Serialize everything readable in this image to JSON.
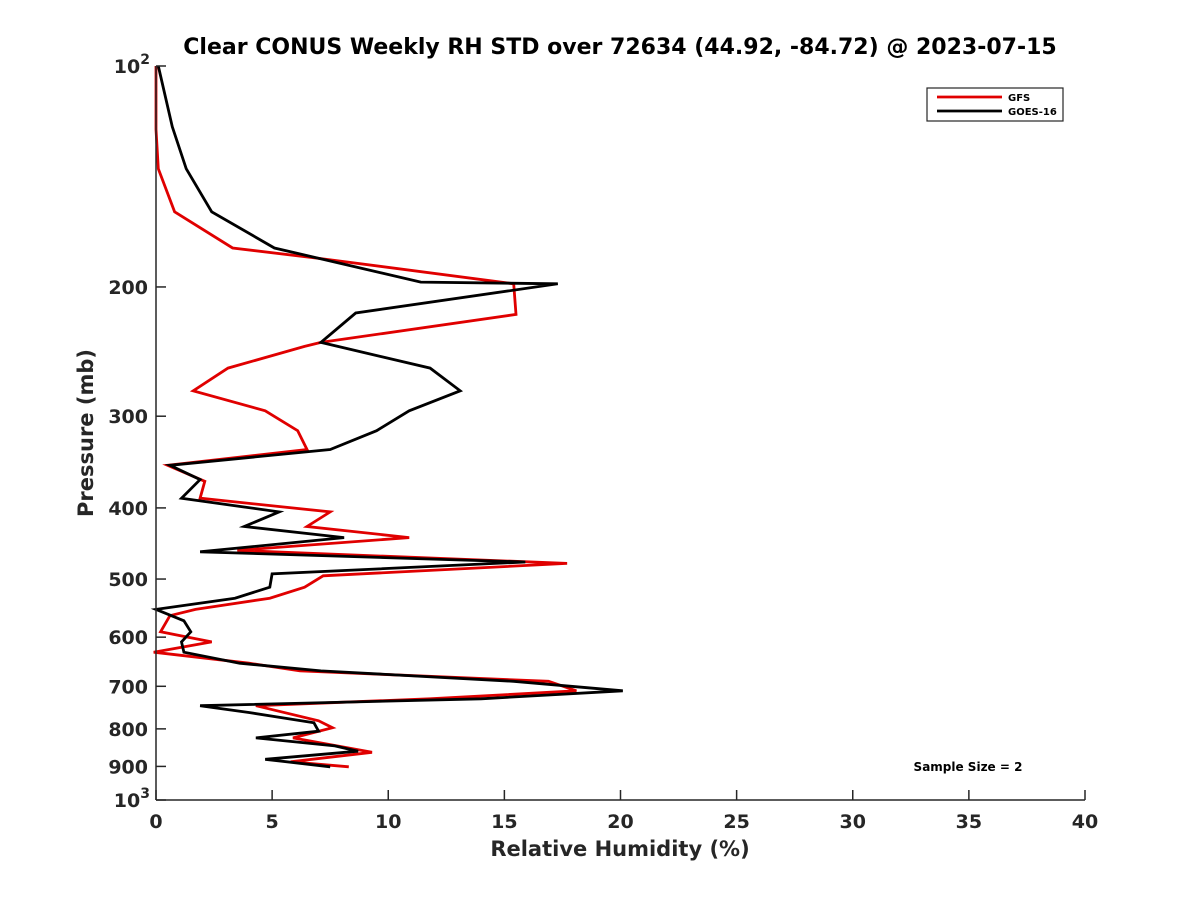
{
  "chart_data": {
    "type": "line",
    "title": "Clear CONUS Weekly RH STD over 72634 (44.92, -84.72) @ 2023-07-15",
    "xlabel": "Relative Humidity (%)",
    "ylabel": "Pressure (mb)",
    "xlim": [
      0,
      40
    ],
    "ylim": [
      100,
      1000
    ],
    "yscale": "log",
    "y_reversed": true,
    "grid": false,
    "x_ticks": [
      0,
      5,
      10,
      15,
      20,
      25,
      30,
      35,
      40
    ],
    "x_tick_labels": [
      "0",
      "5",
      "10",
      "15",
      "20",
      "25",
      "30",
      "35",
      "40"
    ],
    "y_ticks": [
      100,
      200,
      300,
      400,
      500,
      600,
      700,
      800,
      900,
      1000
    ],
    "y_tick_labels": [
      {
        "base": "10",
        "exp": "2"
      },
      {
        "text": "200"
      },
      {
        "text": "300"
      },
      {
        "text": "400"
      },
      {
        "text": "500"
      },
      {
        "text": "600"
      },
      {
        "text": "700"
      },
      {
        "text": "800"
      },
      {
        "text": "900"
      },
      {
        "base": "10",
        "exp": "3"
      }
    ],
    "legend": {
      "position": "top-right",
      "entries": [
        "GFS",
        "GOES-16"
      ]
    },
    "annotations": [
      {
        "text": "Sample Size = 2",
        "position": "bottom-right"
      }
    ],
    "series": [
      {
        "name": "GFS",
        "color": "#e00000",
        "rh": [
          0.0,
          0.0,
          0.1,
          0.8,
          3.3,
          7.1,
          15.4,
          15.5,
          7.1,
          6.4,
          3.1,
          1.6,
          4.7,
          6.1,
          6.5,
          0.5,
          2.1,
          1.9,
          7.5,
          6.5,
          10.9,
          3.5,
          17.7,
          7.2,
          6.4,
          4.9,
          1.7,
          0.6,
          0.2,
          2.4,
          -0.1,
          4.0,
          6.2,
          16.9,
          18.1,
          11.8,
          4.3,
          7.0,
          7.6,
          5.9,
          9.3,
          5.8,
          8.3
        ],
        "pressure": [
          100,
          122,
          138,
          158,
          177,
          183,
          198,
          218,
          238,
          241,
          258,
          277,
          295,
          314,
          333,
          350,
          368,
          388,
          405,
          424,
          439,
          457,
          476,
          495,
          513,
          531,
          550,
          561,
          590,
          609,
          629,
          651,
          667,
          689,
          710,
          728,
          744,
          780,
          797,
          823,
          861,
          887,
          901
        ]
      },
      {
        "name": "GOES-16",
        "color": "#000000",
        "rh": [
          0.1,
          0.7,
          1.3,
          2.4,
          5.1,
          11.4,
          17.3,
          8.6,
          7.1,
          11.8,
          13.1,
          10.9,
          9.5,
          7.5,
          0.6,
          1.9,
          1.1,
          5.3,
          3.8,
          8.1,
          1.9,
          15.9,
          5.0,
          4.9,
          3.4,
          0.0,
          1.2,
          1.5,
          1.1,
          1.2,
          3.6,
          7.1,
          15.4,
          20.1,
          14.0,
          1.9,
          4.0,
          6.8,
          7.0,
          4.3,
          7.7,
          8.7,
          4.7,
          7.5
        ],
        "pressure": [
          100,
          121,
          138,
          158,
          177,
          197,
          198,
          217,
          238,
          258,
          277,
          295,
          314,
          333,
          350,
          366,
          388,
          405,
          424,
          439,
          459,
          474,
          492,
          513,
          531,
          550,
          570,
          590,
          609,
          629,
          651,
          667,
          689,
          710,
          728,
          744,
          760,
          785,
          806,
          823,
          844,
          858,
          880,
          901
        ]
      }
    ]
  }
}
